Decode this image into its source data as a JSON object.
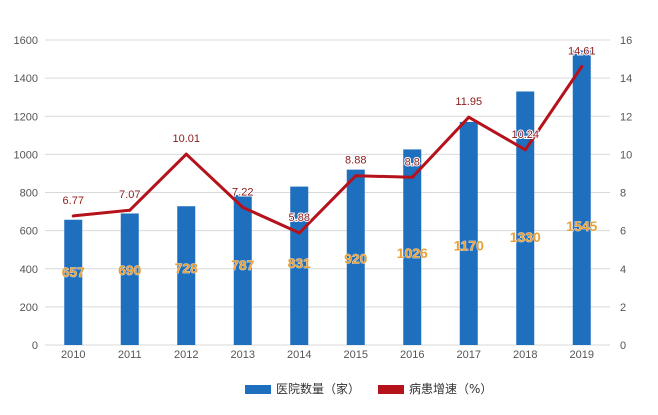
{
  "chart_data": {
    "type": "bar+line",
    "categories": [
      "2010",
      "2011",
      "2012",
      "2013",
      "2014",
      "2015",
      "2016",
      "2017",
      "2018",
      "2019"
    ],
    "series": [
      {
        "name": "医院数量（家）",
        "type": "bar",
        "axis": "left",
        "color": "#1f6fbf",
        "values": [
          657,
          690,
          728,
          787,
          831,
          920,
          1026,
          1170,
          1330,
          1545
        ],
        "labels": [
          "657",
          "690",
          "728",
          "787",
          "831",
          "920",
          "1026",
          "1170",
          "1330",
          "1545"
        ]
      },
      {
        "name": "病患增速（%）",
        "type": "line",
        "axis": "right",
        "color": "#b5121b",
        "values": [
          6.77,
          7.07,
          10.01,
          7.22,
          5.88,
          8.88,
          8.8,
          11.95,
          10.24,
          14.61
        ],
        "labels": [
          "6.77",
          "7.07",
          "10.01",
          "7.22",
          "5.88",
          "8.88",
          "8.8",
          "11.95",
          "10.24",
          "14.61"
        ]
      }
    ],
    "yleft": {
      "lim": [
        0,
        1600
      ],
      "ticks": [
        "0",
        "200",
        "400",
        "600",
        "800",
        "1000",
        "1200",
        "1400",
        "1600"
      ]
    },
    "yright": {
      "lim": [
        0,
        16
      ],
      "ticks": [
        "0",
        "2",
        "4",
        "6",
        "8",
        "10",
        "12",
        "14",
        "16"
      ]
    },
    "grid": true,
    "legend": "bottom",
    "colors": {
      "bar": "#1f6fbf",
      "line": "#b5121b",
      "bar_label": "#e8a13a",
      "line_label": "#8b1a1a",
      "grid": "#d9d9d9"
    }
  }
}
